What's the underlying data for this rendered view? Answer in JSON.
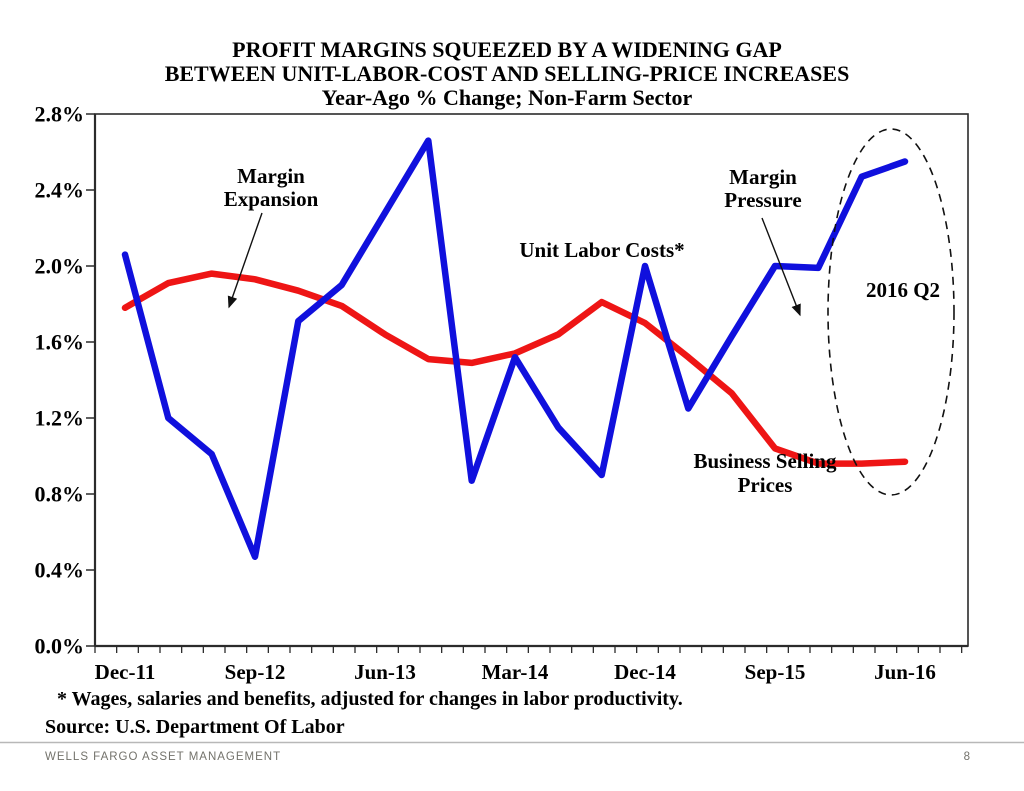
{
  "title": {
    "line1": "PROFIT MARGINS SQUEEZED BY A WIDENING GAP",
    "line2": "BETWEEN UNIT-LABOR-COST AND SELLING-PRICE INCREASES",
    "line3": "Year-Ago % Change; Non-Farm Sector"
  },
  "chart_data": {
    "type": "line",
    "title": "PROFIT MARGINS SQUEEZED BY A WIDENING GAP BETWEEN UNIT-LABOR-COST AND SELLING-PRICE INCREASES",
    "subtitle": "Year-Ago % Change; Non-Farm Sector",
    "grid": false,
    "legend_position": "none",
    "ylim": [
      0,
      2.8
    ],
    "ytick_step": 0.4,
    "ytick_labels": [
      "0.0%",
      "0.4%",
      "0.8%",
      "1.2%",
      "1.6%",
      "2.0%",
      "2.4%",
      "2.8%"
    ],
    "categories": [
      "Dec-11",
      "Mar-12",
      "Jun-12",
      "Sep-12",
      "Dec-12",
      "Mar-13",
      "Jun-13",
      "Sep-13",
      "Dec-13",
      "Mar-14",
      "Jun-14",
      "Sep-14",
      "Dec-14",
      "Mar-15",
      "Jun-15",
      "Sep-15",
      "Dec-15",
      "Mar-16",
      "Jun-16"
    ],
    "x_tick_indices": [
      0,
      3,
      6,
      9,
      12,
      15,
      18
    ],
    "x_tick_labels": [
      "Dec-11",
      "Sep-12",
      "Jun-13",
      "Mar-14",
      "Dec-14",
      "Sep-15",
      "Jun-16"
    ],
    "series": [
      {
        "name": "Unit Labor Costs*",
        "color": "#1010dd",
        "values": [
          2.06,
          1.2,
          1.01,
          0.47,
          1.71,
          1.9,
          2.28,
          2.66,
          0.87,
          1.52,
          1.15,
          0.9,
          2.0,
          1.25,
          1.63,
          2.0,
          1.99,
          2.47,
          2.55
        ]
      },
      {
        "name": "Business Selling Prices",
        "color": "#ee1515",
        "values": [
          1.78,
          1.91,
          1.96,
          1.93,
          1.87,
          1.79,
          1.64,
          1.51,
          1.49,
          1.54,
          1.64,
          1.81,
          1.7,
          1.52,
          1.33,
          1.04,
          0.96,
          0.96,
          0.97
        ]
      }
    ]
  },
  "annotations": {
    "margin_expansion": {
      "line1": "Margin",
      "line2": "Expansion"
    },
    "margin_pressure": {
      "line1": "Margin",
      "line2": "Pressure"
    },
    "unit_labor_costs_label": "Unit Labor Costs*",
    "business_selling": {
      "line1": "Business Selling",
      "line2": "Prices"
    },
    "circle_label": "2016 Q2"
  },
  "footnote": "* Wages, salaries and benefits, adjusted for changes in labor productivity.",
  "source_line": "Source: U.S. Department Of Labor",
  "footer": {
    "brand": "WELLS FARGO ASSET MANAGEMENT",
    "page_number": "8"
  }
}
